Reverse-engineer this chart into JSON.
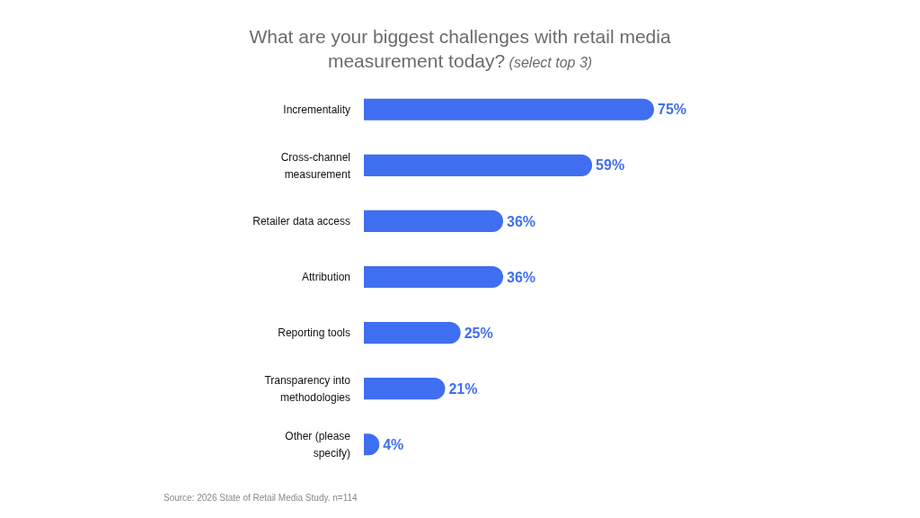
{
  "chart_data": {
    "type": "bar",
    "orientation": "horizontal",
    "title": "What are your biggest challenges with retail media measurement today?",
    "subtitle": "(select top 3)",
    "categories": [
      "Incrementality",
      "Cross-channel measurement",
      "Retailer data access",
      "Attribution",
      "Reporting tools",
      "Transparency into methodologies",
      "Other (please specify)"
    ],
    "values": [
      75,
      59,
      36,
      36,
      25,
      21,
      4
    ],
    "value_labels": [
      "75%",
      "59%",
      "36%",
      "36%",
      "25%",
      "21%",
      "4%"
    ],
    "color": "#3f6ef0",
    "annotations": [
      "Source: 2026 State of Retail Media Study. n=114"
    ]
  }
}
